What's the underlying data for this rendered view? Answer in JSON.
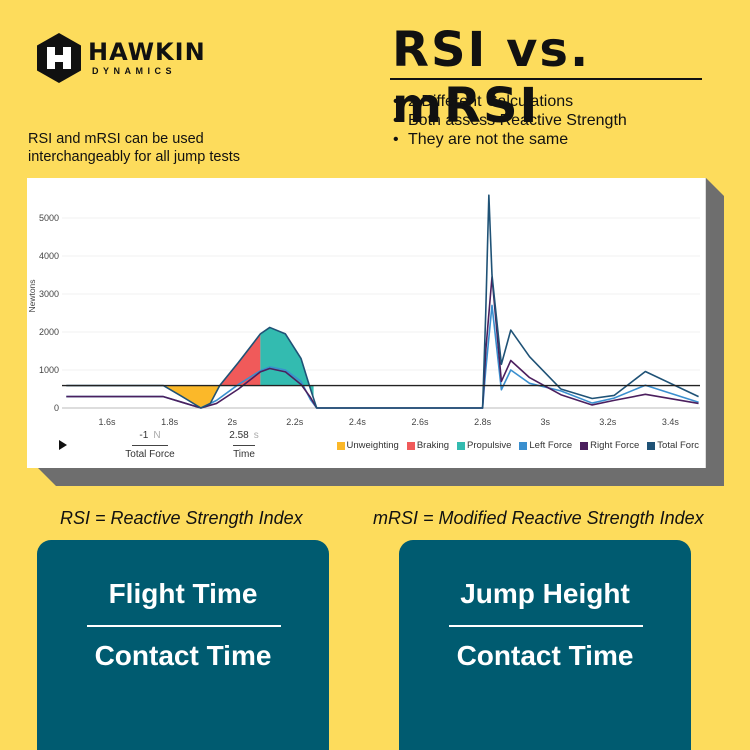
{
  "logo": {
    "brand": "HAWKIN",
    "sub": "DYNAMICS",
    "icon": "hexagon-h-icon"
  },
  "header": {
    "title": "RSI vs. mRSI",
    "bullets": [
      "2 Different Calculations",
      "Both assess Reactive Strength",
      "They are not the same"
    ]
  },
  "note": {
    "line1": "RSI and mRSI can be used",
    "line2": "interchangeably for all jump tests"
  },
  "chart_controls": {
    "play_icon": "play-icon",
    "total_force": {
      "value": "-1",
      "unit": "N",
      "label": "Total Force"
    },
    "time": {
      "value": "2.58",
      "unit": "s",
      "label": "Time"
    }
  },
  "chart_data": {
    "type": "line",
    "title": "",
    "xlabel": "",
    "ylabel": "Newtons",
    "xlim": [
      1.47,
      3.49
    ],
    "ylim": [
      0,
      5600
    ],
    "grid": true,
    "legend_position": "bottom-right",
    "x_ticks": [
      "1.6s",
      "1.8s",
      "2s",
      "2.2s",
      "2.4s",
      "2.6s",
      "2.8s",
      "3s",
      "3.2s",
      "3.4s"
    ],
    "y_ticks": [
      "0",
      "1000",
      "2000",
      "3000",
      "4000",
      "5000"
    ],
    "reference_line": {
      "name": "Body Weight",
      "y": 590,
      "color": "#222222"
    },
    "phases": [
      {
        "name": "Unweighting",
        "color": "#fbb829",
        "x_start": 1.78,
        "x_end": 1.96
      },
      {
        "name": "Braking",
        "color": "#f05a5a",
        "x_start": 1.96,
        "x_end": 2.09
      },
      {
        "name": "Propulsive",
        "color": "#33bbb0",
        "x_start": 2.09,
        "x_end": 2.26
      }
    ],
    "legend": [
      {
        "name": "Unweighting",
        "color": "#fbb829"
      },
      {
        "name": "Braking",
        "color": "#f05a5a"
      },
      {
        "name": "Propulsive",
        "color": "#33bbb0"
      },
      {
        "name": "Left Force",
        "color": "#3a8fcf"
      },
      {
        "name": "Right Force",
        "color": "#4b1f5e"
      },
      {
        "name": "Total Forc",
        "color": "#1f5276"
      }
    ],
    "series": [
      {
        "name": "Total Force",
        "color": "#1f5276",
        "x": [
          1.47,
          1.78,
          1.84,
          1.9,
          1.93,
          1.96,
          2.02,
          2.09,
          2.12,
          2.17,
          2.22,
          2.25,
          2.27,
          2.8,
          2.81,
          2.82,
          2.83,
          2.86,
          2.89,
          2.95,
          3.05,
          3.15,
          3.22,
          3.32,
          3.49
        ],
        "y": [
          590,
          590,
          300,
          0,
          120,
          590,
          1200,
          1950,
          2120,
          1950,
          1300,
          500,
          0,
          0,
          2500,
          5600,
          3500,
          1150,
          2050,
          1350,
          500,
          250,
          330,
          960,
          300
        ]
      },
      {
        "name": "Left Force",
        "color": "#3a8fcf",
        "x": [
          1.47,
          1.78,
          1.84,
          1.9,
          1.95,
          2.02,
          2.09,
          2.12,
          2.17,
          2.22,
          2.25,
          2.27,
          2.8,
          2.81,
          2.83,
          2.86,
          2.89,
          2.95,
          3.05,
          3.15,
          3.22,
          3.32,
          3.49
        ],
        "y": [
          300,
          300,
          150,
          0,
          200,
          620,
          980,
          1080,
          1000,
          700,
          220,
          0,
          0,
          1000,
          2700,
          480,
          1000,
          650,
          450,
          130,
          260,
          600,
          150
        ]
      },
      {
        "name": "Right Force",
        "color": "#4b1f5e",
        "x": [
          1.47,
          1.78,
          1.84,
          1.9,
          1.95,
          2.02,
          2.09,
          2.12,
          2.17,
          2.22,
          2.25,
          2.27,
          2.8,
          2.81,
          2.83,
          2.86,
          2.89,
          2.95,
          3.05,
          3.15,
          3.22,
          3.32,
          3.49
        ],
        "y": [
          300,
          300,
          150,
          0,
          120,
          500,
          950,
          1040,
          950,
          620,
          280,
          0,
          0,
          1500,
          3450,
          700,
          1250,
          800,
          350,
          80,
          200,
          360,
          120
        ]
      }
    ]
  },
  "formulas": {
    "rsi": "RSI = Reactive Strength Index",
    "mrsi": "mRSI = Modified Reactive Strength Index"
  },
  "cards": {
    "rsi": {
      "numerator": "Flight Time",
      "denominator": "Contact Time"
    },
    "mrsi": {
      "numerator": "Jump Height",
      "denominator": "Contact Time"
    }
  }
}
